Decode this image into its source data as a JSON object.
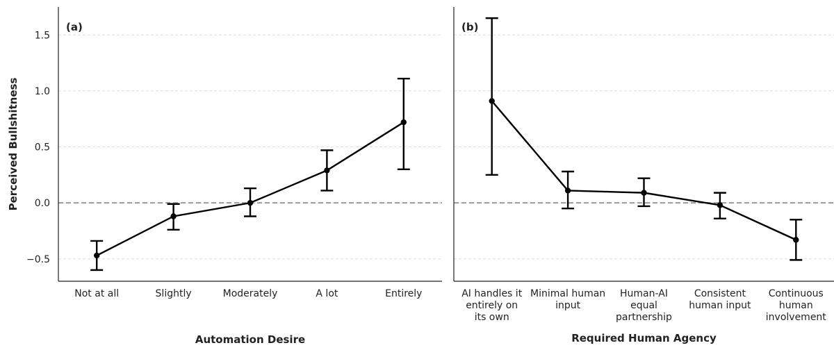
{
  "chart_data": [
    {
      "type": "line",
      "panel_label": "(a)",
      "xlabel": "Automation Desire",
      "ylabel": "Perceived Bullshitness",
      "categories": [
        "Not at all",
        "Slightly",
        "Moderately",
        "A lot",
        "Entirely"
      ],
      "values": [
        -0.47,
        -0.12,
        0.0,
        0.29,
        0.72
      ],
      "ci_low": [
        -0.6,
        -0.24,
        -0.12,
        0.11,
        0.3
      ],
      "ci_high": [
        -0.34,
        -0.01,
        0.13,
        0.47,
        1.11
      ],
      "ylim": [
        -0.7,
        1.75
      ],
      "yticks": [
        -0.5,
        0.0,
        0.5,
        1.0,
        1.5
      ],
      "ytick_labels": [
        "−0.5",
        "0.0",
        "0.5",
        "1.0",
        "1.5"
      ],
      "reference_line": 0.0,
      "grid": "horizontal dashed",
      "colors": {
        "line": "#000000",
        "reference": "#999999",
        "grid": "#dddddd"
      }
    },
    {
      "type": "line",
      "panel_label": "(b)",
      "xlabel": "Required Human Agency",
      "ylabel": "",
      "categories": [
        [
          "AI handles it",
          "entirely on",
          "its own"
        ],
        [
          "Minimal human",
          "input"
        ],
        [
          "Human-AI",
          "equal",
          "partnership"
        ],
        [
          "Consistent",
          "human input"
        ],
        [
          "Continuous",
          "human",
          "involvement"
        ]
      ],
      "values": [
        0.91,
        0.11,
        0.09,
        -0.02,
        -0.33
      ],
      "ci_low": [
        0.25,
        -0.05,
        -0.03,
        -0.14,
        -0.51
      ],
      "ci_high": [
        1.65,
        0.28,
        0.22,
        0.09,
        -0.15
      ],
      "ylim": [
        -0.7,
        1.75
      ],
      "reference_line": 0.0,
      "grid": "horizontal dashed",
      "colors": {
        "line": "#000000",
        "reference": "#999999",
        "grid": "#dddddd"
      }
    }
  ]
}
